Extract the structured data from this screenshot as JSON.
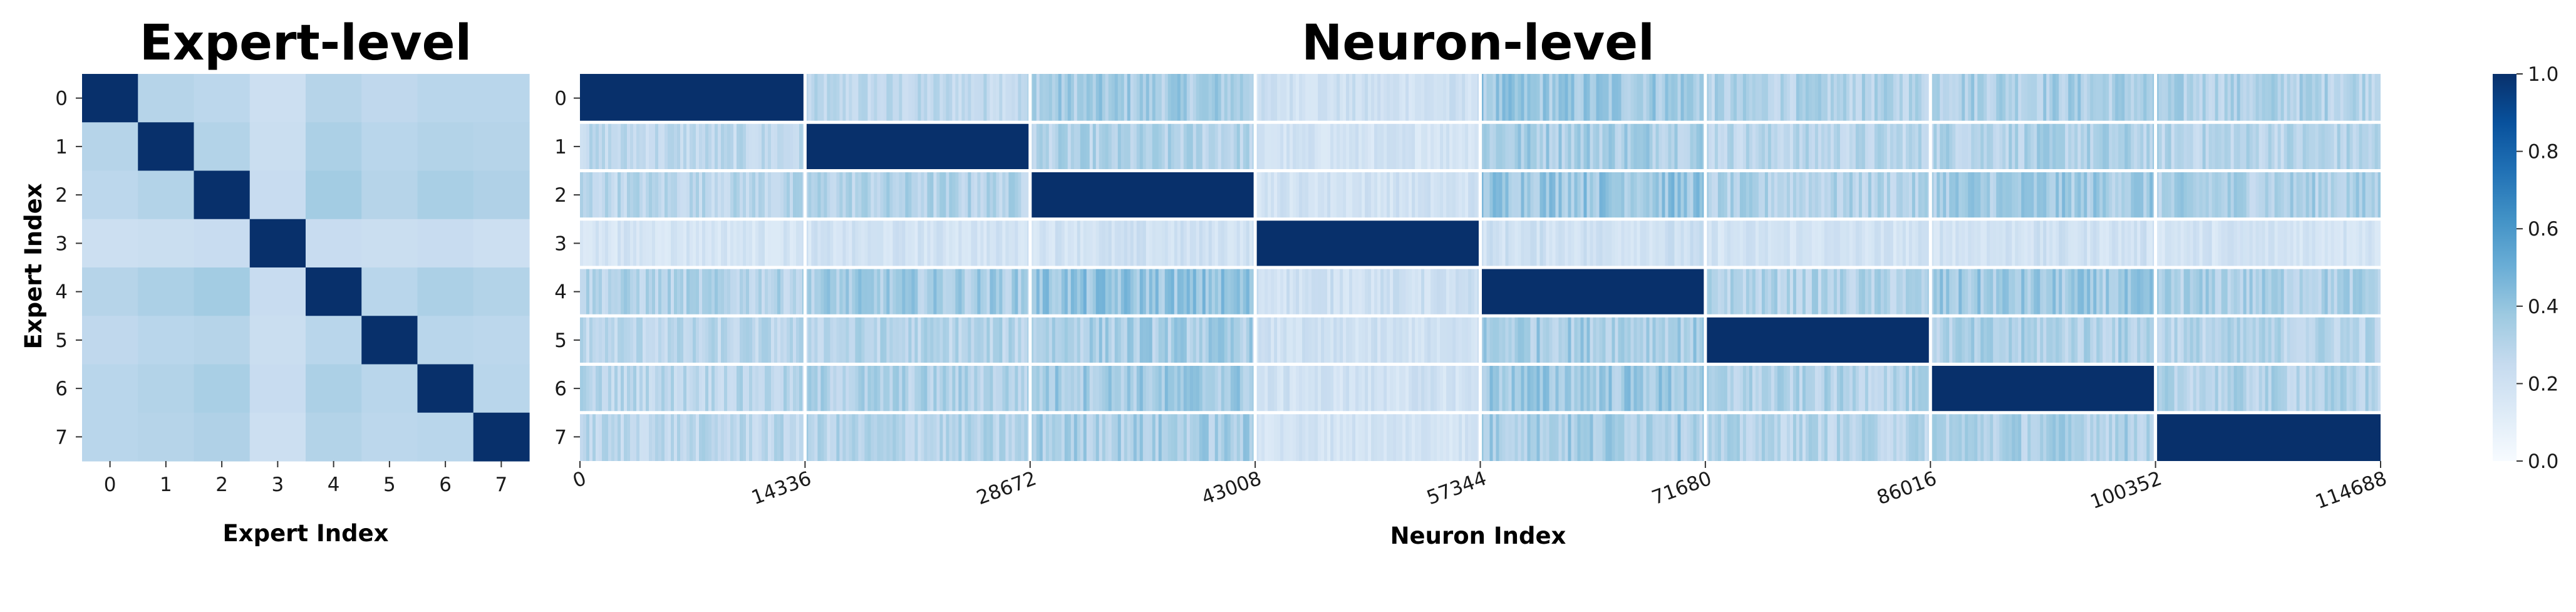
{
  "chart_data": [
    {
      "type": "heatmap",
      "title": "Expert-level",
      "xlabel": "Expert Index",
      "ylabel": "Expert Index",
      "x_ticks": [
        "0",
        "1",
        "2",
        "3",
        "4",
        "5",
        "6",
        "7"
      ],
      "y_ticks": [
        "0",
        "1",
        "2",
        "3",
        "4",
        "5",
        "6",
        "7"
      ],
      "colormap": "Blues",
      "vmin": 0.0,
      "vmax": 1.0,
      "values": [
        [
          1.0,
          0.3,
          0.28,
          0.22,
          0.3,
          0.27,
          0.29,
          0.29
        ],
        [
          0.3,
          1.0,
          0.31,
          0.23,
          0.33,
          0.29,
          0.31,
          0.3
        ],
        [
          0.28,
          0.31,
          1.0,
          0.24,
          0.36,
          0.3,
          0.34,
          0.32
        ],
        [
          0.22,
          0.23,
          0.24,
          1.0,
          0.24,
          0.23,
          0.24,
          0.22
        ],
        [
          0.3,
          0.33,
          0.36,
          0.24,
          1.0,
          0.29,
          0.33,
          0.31
        ],
        [
          0.27,
          0.29,
          0.3,
          0.23,
          0.29,
          1.0,
          0.29,
          0.28
        ],
        [
          0.29,
          0.31,
          0.34,
          0.24,
          0.33,
          0.29,
          1.0,
          0.29
        ],
        [
          0.29,
          0.3,
          0.32,
          0.22,
          0.31,
          0.28,
          0.29,
          1.0
        ]
      ]
    },
    {
      "type": "heatmap",
      "title": "Neuron-level",
      "xlabel": "Neuron Index",
      "ylabel": "",
      "x_ticks": [
        "0",
        "14336",
        "28672",
        "43008",
        "57344",
        "71680",
        "86016",
        "100352",
        "114688"
      ],
      "y_ticks": [
        "0",
        "1",
        "2",
        "3",
        "4",
        "5",
        "6",
        "7"
      ],
      "x_range": [
        0,
        114688
      ],
      "neurons_per_expert": 14336,
      "colormap": "Blues",
      "vmin": 0.0,
      "vmax": 1.0,
      "block_mean_values": [
        [
          1.0,
          0.26,
          0.34,
          0.2,
          0.36,
          0.3,
          0.33,
          0.31
        ],
        [
          0.26,
          1.0,
          0.3,
          0.18,
          0.34,
          0.28,
          0.31,
          0.29
        ],
        [
          0.28,
          0.3,
          1.0,
          0.19,
          0.38,
          0.3,
          0.35,
          0.32
        ],
        [
          0.17,
          0.18,
          0.19,
          1.0,
          0.2,
          0.18,
          0.19,
          0.18
        ],
        [
          0.3,
          0.34,
          0.38,
          0.2,
          1.0,
          0.3,
          0.35,
          0.32
        ],
        [
          0.27,
          0.29,
          0.33,
          0.19,
          0.34,
          1.0,
          0.31,
          0.29
        ],
        [
          0.28,
          0.31,
          0.35,
          0.19,
          0.36,
          0.3,
          1.0,
          0.3
        ],
        [
          0.27,
          0.29,
          0.33,
          0.18,
          0.34,
          0.29,
          0.32,
          1.0
        ]
      ]
    }
  ],
  "colorbar": {
    "colormap": "Blues",
    "range": [
      0.0,
      1.0
    ],
    "ticks": [
      "0.0",
      "0.2",
      "0.4",
      "0.6",
      "0.8",
      "1.0"
    ]
  }
}
